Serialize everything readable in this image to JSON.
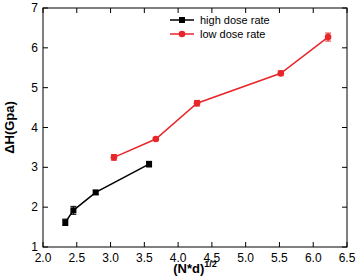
{
  "chart_data": {
    "type": "line",
    "x_label": "(N*d)1/2",
    "y_label": "ΔH(Gpa)",
    "xlim": [
      2.0,
      6.5
    ],
    "ylim": [
      1,
      7
    ],
    "xticks": [
      {
        "value": 2.0,
        "label": "2.0"
      },
      {
        "value": 2.5,
        "label": "2.5"
      },
      {
        "value": 3.0,
        "label": "3.0"
      },
      {
        "value": 3.5,
        "label": "3.5"
      },
      {
        "value": 4.0,
        "label": "4.0"
      },
      {
        "value": 4.5,
        "label": "4.5"
      },
      {
        "value": 5.0,
        "label": "5.0"
      },
      {
        "value": 5.5,
        "label": "5.5"
      },
      {
        "value": 6.0,
        "label": "6.0"
      },
      {
        "value": 6.5,
        "label": "6.5"
      }
    ],
    "yticks": [
      1,
      2,
      3,
      4,
      5,
      6,
      7
    ],
    "grid": false,
    "legend": "upper-left",
    "series": [
      {
        "name": "high dose rate",
        "color": "#000000",
        "marker": "square",
        "line_style": "solid",
        "x": [
          2.33,
          2.45,
          2.78,
          3.57
        ],
        "values": [
          1.62,
          1.92,
          2.37,
          3.08
        ],
        "errors": [
          0.08,
          0.1,
          0.05,
          0.07
        ]
      },
      {
        "name": "low dose rate",
        "color": "#e8262a",
        "marker": "circle",
        "line_style": "solid",
        "x": [
          3.05,
          3.67,
          4.28,
          5.52,
          6.22
        ],
        "values": [
          3.25,
          3.71,
          4.61,
          5.36,
          6.27
        ],
        "errors": [
          0.07,
          0.03,
          0.07,
          0.06,
          0.1
        ]
      }
    ]
  }
}
